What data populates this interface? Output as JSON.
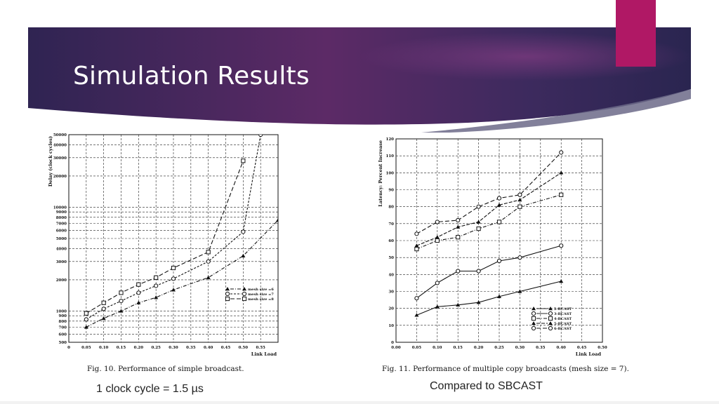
{
  "slide": {
    "title": "Simulation Results",
    "colors": {
      "banner_dark": "#2f2452",
      "banner_mid": "#5c2a66",
      "banner_light": "#7a3a7e",
      "accent": "#b01865"
    }
  },
  "figures": {
    "left": {
      "caption": "Fig. 10.   Performance of simple broadcast.",
      "note": "1 clock cycle = 1.5 µs"
    },
    "right": {
      "caption": "Fig. 11.   Performance of multiple copy broadcasts (mesh size = 7).",
      "note": "Compared to SBCAST"
    }
  },
  "chart_data": [
    {
      "type": "line",
      "xlabel": "Link Load",
      "ylabel": "Delay (clock cycles)",
      "yscale": "log",
      "ylim": [
        500,
        50000
      ],
      "xlim": [
        0,
        0.6
      ],
      "grid": true,
      "x_ticks": [
        "0",
        "0.05",
        "0.10",
        "0.15",
        "0.20",
        "0.25",
        "0.30",
        "0.35",
        "0.40",
        "0.45",
        "0.50",
        "0.55"
      ],
      "y_ticks": [
        "500",
        "600",
        "700",
        "800",
        "900",
        "1000",
        "2000",
        "3000",
        "4000",
        "5000",
        "6000",
        "7000",
        "8000",
        "9000",
        "10000",
        "20000",
        "30000",
        "40000",
        "50000"
      ],
      "legend_position": "bottom-right",
      "series": [
        {
          "name": "mesh size =6",
          "marker": "triangle",
          "x": [
            0.05,
            0.1,
            0.15,
            0.2,
            0.25,
            0.3,
            0.4,
            0.5,
            0.6
          ],
          "values": [
            700,
            850,
            1000,
            1200,
            1350,
            1600,
            2100,
            3400,
            7500
          ]
        },
        {
          "name": "mesh size =7",
          "marker": "circle",
          "x": [
            0.05,
            0.1,
            0.15,
            0.2,
            0.25,
            0.3,
            0.4,
            0.5,
            0.55
          ],
          "values": [
            830,
            1050,
            1250,
            1500,
            1750,
            2050,
            3000,
            5800,
            50000
          ]
        },
        {
          "name": "mesh size =8",
          "marker": "square",
          "x": [
            0.05,
            0.1,
            0.15,
            0.2,
            0.25,
            0.3,
            0.4,
            0.5
          ],
          "values": [
            950,
            1200,
            1500,
            1800,
            2100,
            2600,
            3700,
            28000
          ]
        }
      ]
    },
    {
      "type": "line",
      "xlabel": "Link Load",
      "ylabel": "Latency: Percent Increase",
      "ylim": [
        0,
        120
      ],
      "xlim": [
        0,
        0.5
      ],
      "grid": true,
      "x_ticks": [
        "0.00",
        "0.05",
        "0.10",
        "0.15",
        "0.20",
        "0.25",
        "0.30",
        "0.35",
        "0.40",
        "0.45",
        "0.50"
      ],
      "y_ticks": [
        "0",
        "10",
        "20",
        "30",
        "40",
        "50",
        "60",
        "70",
        "80",
        "90",
        "100",
        "110",
        "120"
      ],
      "legend_position": "bottom-right",
      "series": [
        {
          "name": "2-BCAST",
          "marker": "triangle",
          "x": [
            0.05,
            0.1,
            0.15,
            0.2,
            0.25,
            0.3,
            0.4
          ],
          "values": [
            16,
            21,
            22,
            23.5,
            27,
            30,
            36
          ]
        },
        {
          "name": "3-BCAST",
          "marker": "circle",
          "x": [
            0.05,
            0.1,
            0.15,
            0.2,
            0.25,
            0.3,
            0.4
          ],
          "values": [
            26,
            35,
            42,
            42,
            48,
            50,
            57
          ]
        },
        {
          "name": "4-BCAST",
          "marker": "square",
          "x": [
            0.05,
            0.1,
            0.15,
            0.2,
            0.25,
            0.3,
            0.4
          ],
          "values": [
            55,
            60,
            62,
            67,
            71,
            80,
            87
          ]
        },
        {
          "name": "5-BCAST",
          "marker": "triangle",
          "x": [
            0.05,
            0.1,
            0.15,
            0.2,
            0.25,
            0.3,
            0.4
          ],
          "values": [
            57,
            62,
            68,
            71,
            81,
            84,
            100
          ]
        },
        {
          "name": "6-BCAST",
          "marker": "circle",
          "x": [
            0.05,
            0.1,
            0.15,
            0.2,
            0.25,
            0.3,
            0.4
          ],
          "values": [
            64,
            71,
            72,
            80,
            85,
            87,
            112
          ]
        }
      ]
    }
  ]
}
